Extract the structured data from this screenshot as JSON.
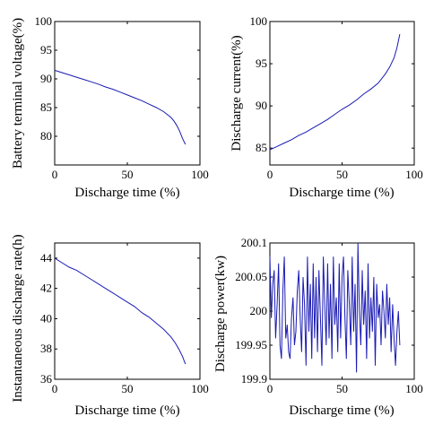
{
  "chart_data": [
    {
      "type": "line",
      "xlabel": "Discharge time (%)",
      "ylabel": "Battery terminal voltage(%)",
      "xlim": [
        0,
        100
      ],
      "ylim": [
        75,
        100
      ],
      "xticks": [
        "0",
        "50",
        "100"
      ],
      "yticks": [
        "80",
        "85",
        "90",
        "95",
        "100"
      ],
      "series": [
        {
          "x": [
            0,
            5,
            10,
            15,
            20,
            25,
            30,
            35,
            40,
            45,
            50,
            55,
            60,
            65,
            70,
            75,
            80,
            82,
            84,
            86,
            88,
            90
          ],
          "y": [
            91.5,
            91.1,
            90.7,
            90.3,
            89.9,
            89.5,
            89.1,
            88.6,
            88.2,
            87.7,
            87.2,
            86.7,
            86.2,
            85.6,
            85.0,
            84.3,
            83.3,
            82.7,
            81.9,
            80.9,
            79.6,
            78.6
          ]
        }
      ]
    },
    {
      "type": "line",
      "xlabel": "Discharge time (%)",
      "ylabel": "Discharge current(%)",
      "xlim": [
        0,
        100
      ],
      "ylim": [
        83,
        100
      ],
      "xticks": [
        "0",
        "50",
        "100"
      ],
      "yticks": [
        "85",
        "90",
        "95",
        "100"
      ],
      "series": [
        {
          "x": [
            0,
            5,
            10,
            15,
            20,
            25,
            30,
            35,
            40,
            45,
            50,
            55,
            60,
            65,
            70,
            75,
            80,
            83,
            86,
            88,
            90
          ],
          "y": [
            84.8,
            85.2,
            85.6,
            86.0,
            86.5,
            86.9,
            87.4,
            87.9,
            88.4,
            89.0,
            89.6,
            90.1,
            90.7,
            91.4,
            92.0,
            92.7,
            93.8,
            94.6,
            95.7,
            96.9,
            98.5
          ]
        }
      ]
    },
    {
      "type": "line",
      "xlabel": "Discharge time (%)",
      "ylabel": "Instantaneous discharge rate(h)",
      "xlim": [
        0,
        100
      ],
      "ylim": [
        36,
        45
      ],
      "xticks": [
        "0",
        "50",
        "100"
      ],
      "yticks": [
        "36",
        "38",
        "40",
        "42",
        "44"
      ],
      "series": [
        {
          "x": [
            0,
            5,
            10,
            15,
            20,
            25,
            30,
            35,
            40,
            45,
            50,
            55,
            60,
            65,
            70,
            75,
            80,
            83,
            86,
            88,
            90
          ],
          "y": [
            44.0,
            43.7,
            43.4,
            43.2,
            42.9,
            42.6,
            42.3,
            42.0,
            41.7,
            41.4,
            41.1,
            40.8,
            40.4,
            40.1,
            39.7,
            39.3,
            38.8,
            38.4,
            37.9,
            37.5,
            37.0
          ]
        }
      ]
    },
    {
      "type": "line",
      "xlabel": "Discharge time (%)",
      "ylabel": "Discharge power(kw)",
      "xlim": [
        0,
        100
      ],
      "ylim": [
        199.9,
        200.1
      ],
      "xticks": [
        "0",
        "50",
        "100"
      ],
      "yticks": [
        "199.9",
        "199.95",
        "200",
        "200.05",
        "200.1"
      ],
      "series": [
        {
          "x": [
            0,
            1,
            2,
            3,
            4,
            5,
            6,
            7,
            8,
            9,
            10,
            11,
            12,
            13,
            14,
            15,
            16,
            17,
            18,
            19,
            20,
            21,
            22,
            23,
            24,
            25,
            26,
            27,
            28,
            29,
            30,
            31,
            32,
            33,
            34,
            35,
            36,
            37,
            38,
            39,
            40,
            41,
            42,
            43,
            44,
            45,
            46,
            47,
            48,
            49,
            50,
            51,
            52,
            53,
            54,
            55,
            56,
            57,
            58,
            59,
            60,
            61,
            62,
            63,
            64,
            65,
            66,
            67,
            68,
            69,
            70,
            71,
            72,
            73,
            74,
            75,
            76,
            77,
            78,
            79,
            80,
            81,
            82,
            83,
            84,
            85,
            86,
            87,
            88,
            89,
            90
          ],
          "y": [
            200.08,
            199.99,
            200.04,
            200.06,
            199.96,
            200.01,
            200.07,
            199.95,
            199.93,
            200.03,
            200.08,
            199.96,
            199.98,
            199.94,
            199.93,
            199.99,
            200.02,
            199.95,
            199.97,
            200.03,
            200.06,
            199.99,
            199.94,
            200.05,
            200.01,
            199.92,
            200.08,
            199.97,
            200.04,
            199.93,
            200.07,
            199.96,
            200.05,
            199.94,
            200.06,
            199.99,
            199.92,
            200.08,
            200.01,
            199.95,
            200.07,
            199.96,
            200.04,
            199.93,
            200.08,
            199.98,
            200.02,
            199.94,
            200.07,
            199.96,
            200.05,
            200.08,
            199.99,
            199.93,
            200.06,
            200.01,
            199.95,
            200.08,
            199.97,
            200.04,
            199.91,
            200.1,
            200.0,
            199.95,
            200.06,
            199.98,
            200.03,
            199.93,
            200.07,
            199.96,
            200.02,
            199.97,
            200.05,
            199.92,
            200.04,
            199.99,
            200.01,
            199.95,
            200.03,
            200.0,
            199.96,
            200.04,
            199.98,
            200.02,
            199.94,
            200.01,
            199.96,
            199.92,
            199.97,
            200.0,
            199.95
          ]
        }
      ]
    }
  ]
}
